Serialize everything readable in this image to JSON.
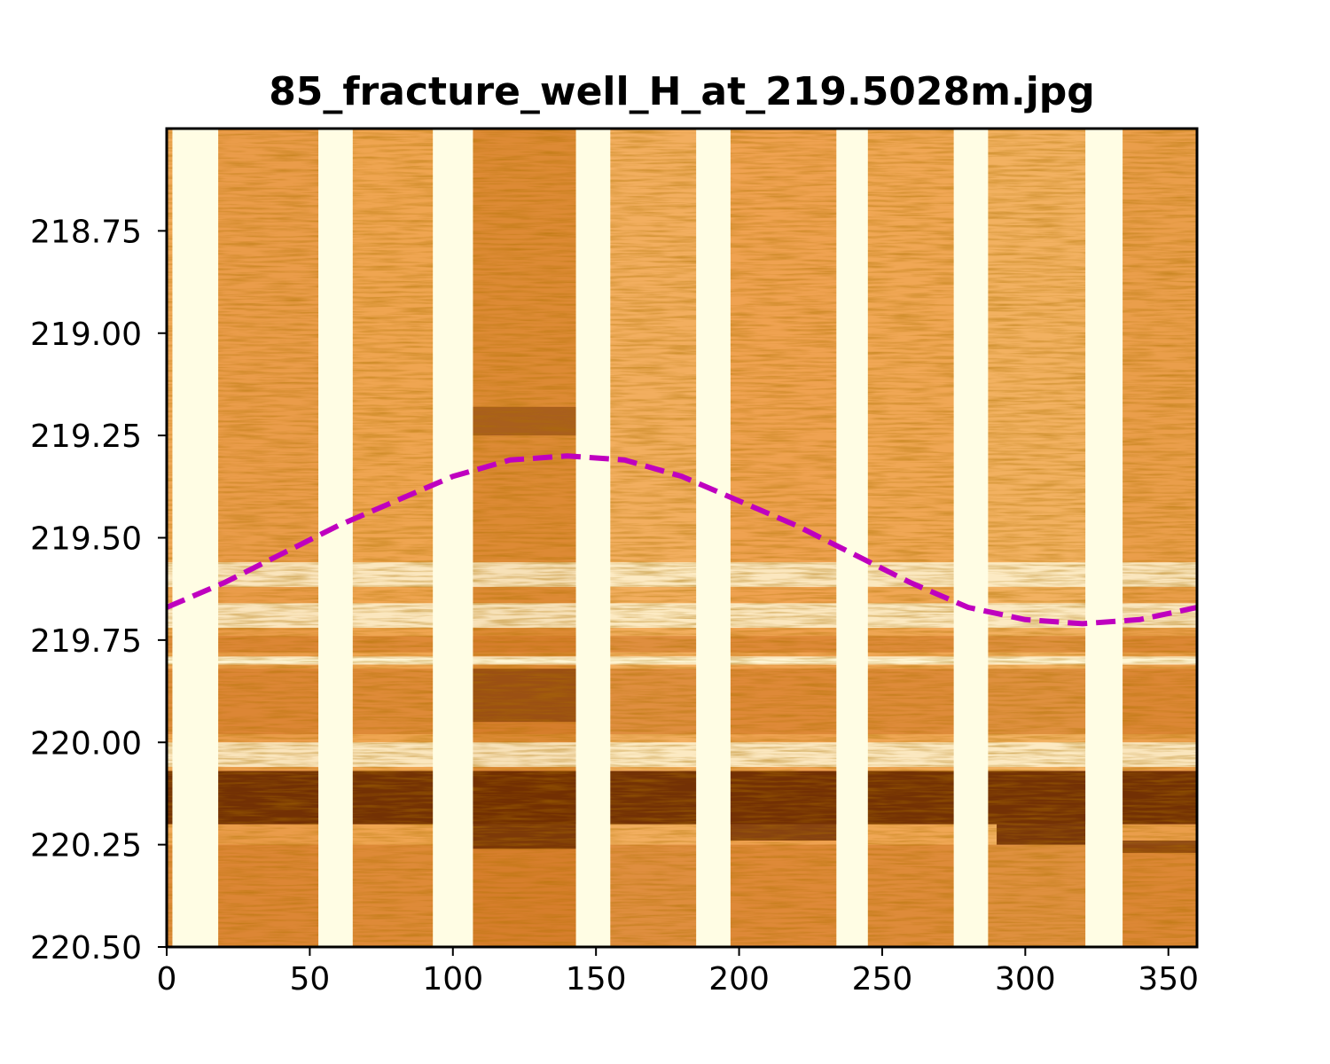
{
  "chart_data": {
    "type": "line",
    "title": "85_fracture_well_H_at_219.5028m.jpg",
    "xlabel": "",
    "ylabel": "",
    "xlim": [
      0,
      360
    ],
    "ylim": [
      220.5,
      218.5
    ],
    "y_inverted": true,
    "grid": false,
    "x_ticks": [
      0,
      50,
      100,
      150,
      200,
      250,
      300,
      350
    ],
    "x_tick_labels": [
      "0",
      "50",
      "100",
      "150",
      "200",
      "250",
      "300",
      "350"
    ],
    "y_ticks": [
      218.75,
      219.0,
      219.25,
      219.5,
      219.75,
      220.0,
      220.25,
      220.5
    ],
    "y_tick_labels": [
      "218.75",
      "219.00",
      "219.25",
      "219.50",
      "219.75",
      "220.00",
      "220.25",
      "220.50"
    ],
    "background_image": {
      "kind": "borehole-image",
      "colormap": "afmhot-reversed",
      "colors": {
        "light": "#fffde4",
        "mid": "#e8943a",
        "dark": "#6b2a00"
      },
      "pad_gaps_deg": [
        [
          2,
          18
        ],
        [
          53,
          65
        ],
        [
          93,
          107
        ],
        [
          143,
          155
        ],
        [
          185,
          197
        ],
        [
          234,
          245
        ],
        [
          275,
          287
        ],
        [
          321,
          334
        ]
      ],
      "dark_bands_m": [
        [
          220.07,
          220.2
        ],
        [
          220.2,
          220.25
        ]
      ],
      "light_bands_m": [
        [
          219.78,
          219.82
        ],
        [
          220.0,
          220.05
        ]
      ]
    },
    "series": [
      {
        "style": "dashed",
        "color": "#bf00bf",
        "x": [
          0,
          20,
          40,
          60,
          80,
          100,
          120,
          140,
          160,
          180,
          200,
          220,
          240,
          260,
          280,
          300,
          320,
          340,
          360
        ],
        "y": [
          219.67,
          219.61,
          219.54,
          219.47,
          219.41,
          219.35,
          219.31,
          219.3,
          219.31,
          219.35,
          219.41,
          219.47,
          219.54,
          219.61,
          219.67,
          219.7,
          219.71,
          219.7,
          219.67
        ]
      }
    ]
  }
}
